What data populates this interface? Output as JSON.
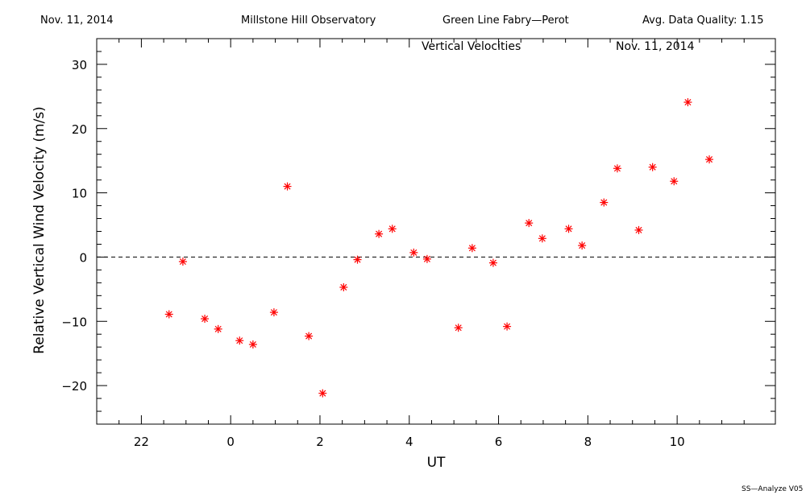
{
  "header": {
    "date": "Nov. 11, 2014",
    "observatory": "Millstone Hill Observatory",
    "instrument": "Green Line Fabry—Perot",
    "quality": "Avg. Data Quality: 1.15"
  },
  "footer": "SS—Analyze V05",
  "chart_data": {
    "type": "scatter",
    "title": "Vertical Velocities",
    "subtitle": "Nov. 11, 2014",
    "xlabel": "UT",
    "ylabel": "Relative Vertical Wind Velocity (m/s)",
    "xlim": [
      -3,
      12.2
    ],
    "ylim": [
      -26,
      34
    ],
    "x_ticks": [
      22,
      0,
      2,
      4,
      6,
      8,
      10
    ],
    "x_tick_values": [
      -2,
      0,
      2,
      4,
      6,
      8,
      10
    ],
    "y_ticks": [
      -20,
      -10,
      0,
      10,
      20,
      30
    ],
    "zero_line": "dashed",
    "marker": "asterisk",
    "marker_color": "#ff0000",
    "series": [
      {
        "x": [
          -1.38,
          -1.07,
          -0.58,
          -0.28,
          0.2,
          0.5,
          0.97,
          1.27,
          1.75,
          2.06,
          2.53,
          2.84,
          3.32,
          3.62,
          4.1,
          4.4,
          5.1,
          5.41,
          5.88,
          6.19,
          6.68,
          6.98,
          7.57,
          7.87,
          8.36,
          8.66,
          9.14,
          9.45,
          9.93,
          10.24,
          10.72
        ],
        "y": [
          -8.9,
          -0.7,
          -9.6,
          -11.2,
          -13.0,
          -13.6,
          -8.6,
          11.0,
          -12.3,
          -21.2,
          -4.7,
          -0.4,
          3.6,
          4.4,
          0.7,
          -0.3,
          -11.0,
          1.4,
          -0.9,
          -10.8,
          5.3,
          2.9,
          4.4,
          1.8,
          8.5,
          13.8,
          4.2,
          14.0,
          11.8,
          24.1,
          15.2
        ]
      }
    ]
  }
}
